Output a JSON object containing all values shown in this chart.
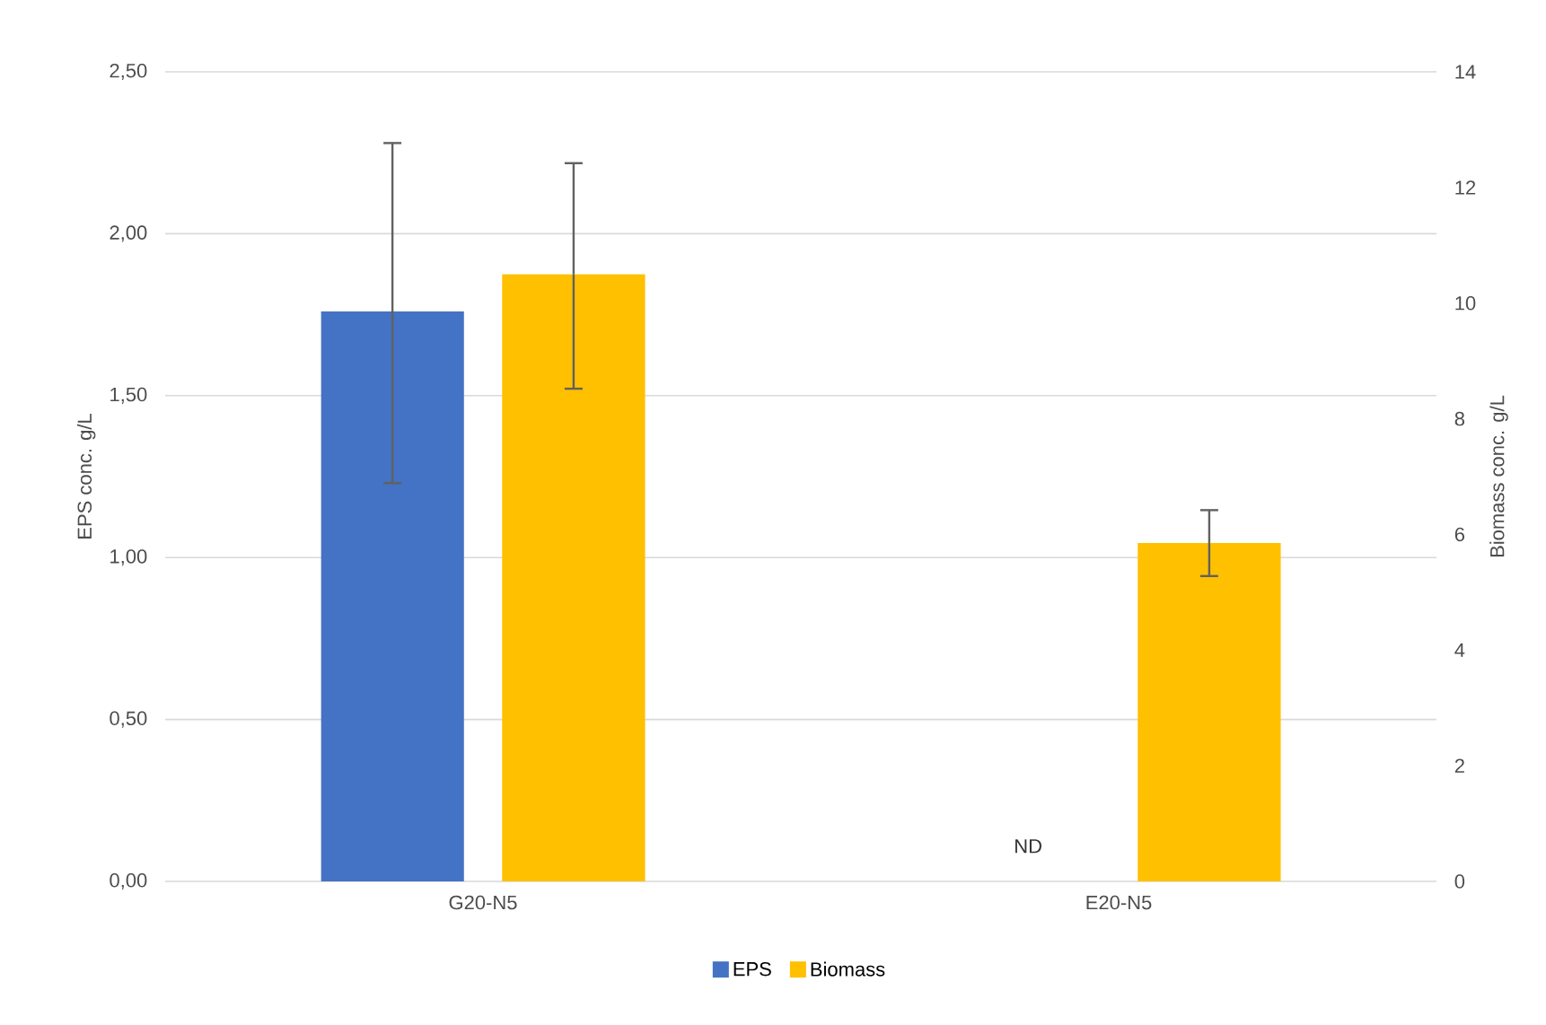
{
  "chart_data": {
    "type": "bar",
    "categories": [
      "G20-N5",
      "E20-N5"
    ],
    "series": [
      {
        "name": "EPS",
        "color": "#4472c4",
        "values": [
          1.76,
          null
        ],
        "errors": [
          [
            1.23,
            2.28
          ],
          null
        ]
      },
      {
        "name": "Biomass",
        "color": "#ffc000",
        "values": [
          10.5,
          5.85
        ],
        "errors": [
          [
            8.52,
            12.42
          ],
          [
            5.28,
            6.42
          ]
        ],
        "axis": "y2"
      }
    ],
    "ylabel": "EPS conc. g/L",
    "y2label": "Biomass conc. g/L",
    "ylim": [
      0,
      2.5
    ],
    "yticks": [
      {
        "value": 0,
        "label": "0,00"
      },
      {
        "value": 0.5,
        "label": "0,50"
      },
      {
        "value": 1,
        "label": "1,00"
      },
      {
        "value": 1.5,
        "label": "1,50"
      },
      {
        "value": 2,
        "label": "2,00"
      },
      {
        "value": 2.5,
        "label": "2,50"
      }
    ],
    "y2lim": [
      0,
      14
    ],
    "y2ticks": [
      0,
      2,
      4,
      6,
      8,
      10,
      12,
      14
    ],
    "annotations": [
      "ND"
    ],
    "grid": "y",
    "legend": "bottom"
  }
}
